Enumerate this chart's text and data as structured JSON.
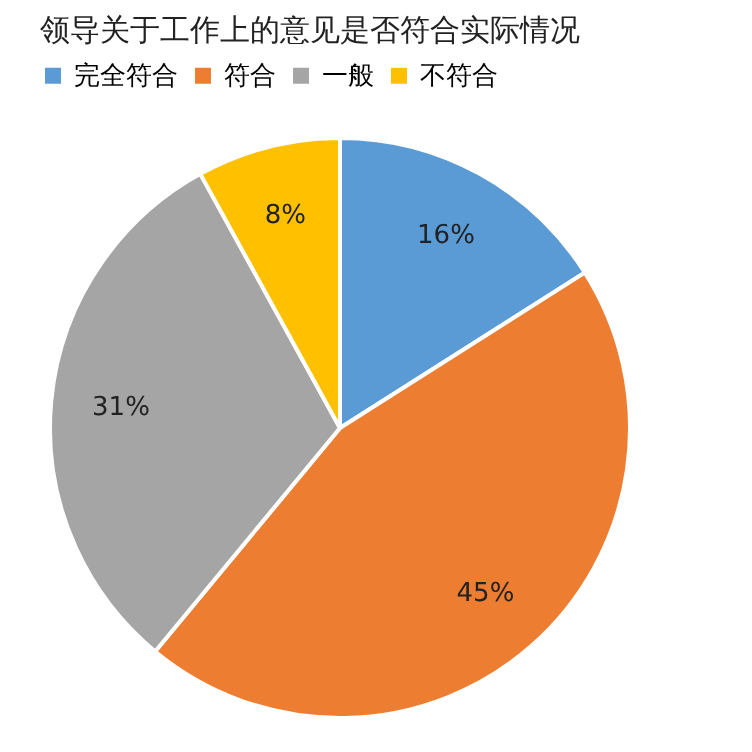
{
  "chart_data": {
    "type": "pie",
    "title": "领导关于工作上的意见是否符合实际情况",
    "categories": [
      "完全符合",
      "符合",
      "一般",
      "不符合"
    ],
    "values": [
      16,
      45,
      31,
      8
    ],
    "colors": [
      "#5b9bd5",
      "#ed7d31",
      "#a5a5a5",
      "#ffc000"
    ],
    "value_labels": [
      "16%",
      "45%",
      "31%",
      "8%"
    ],
    "legend": "top"
  }
}
